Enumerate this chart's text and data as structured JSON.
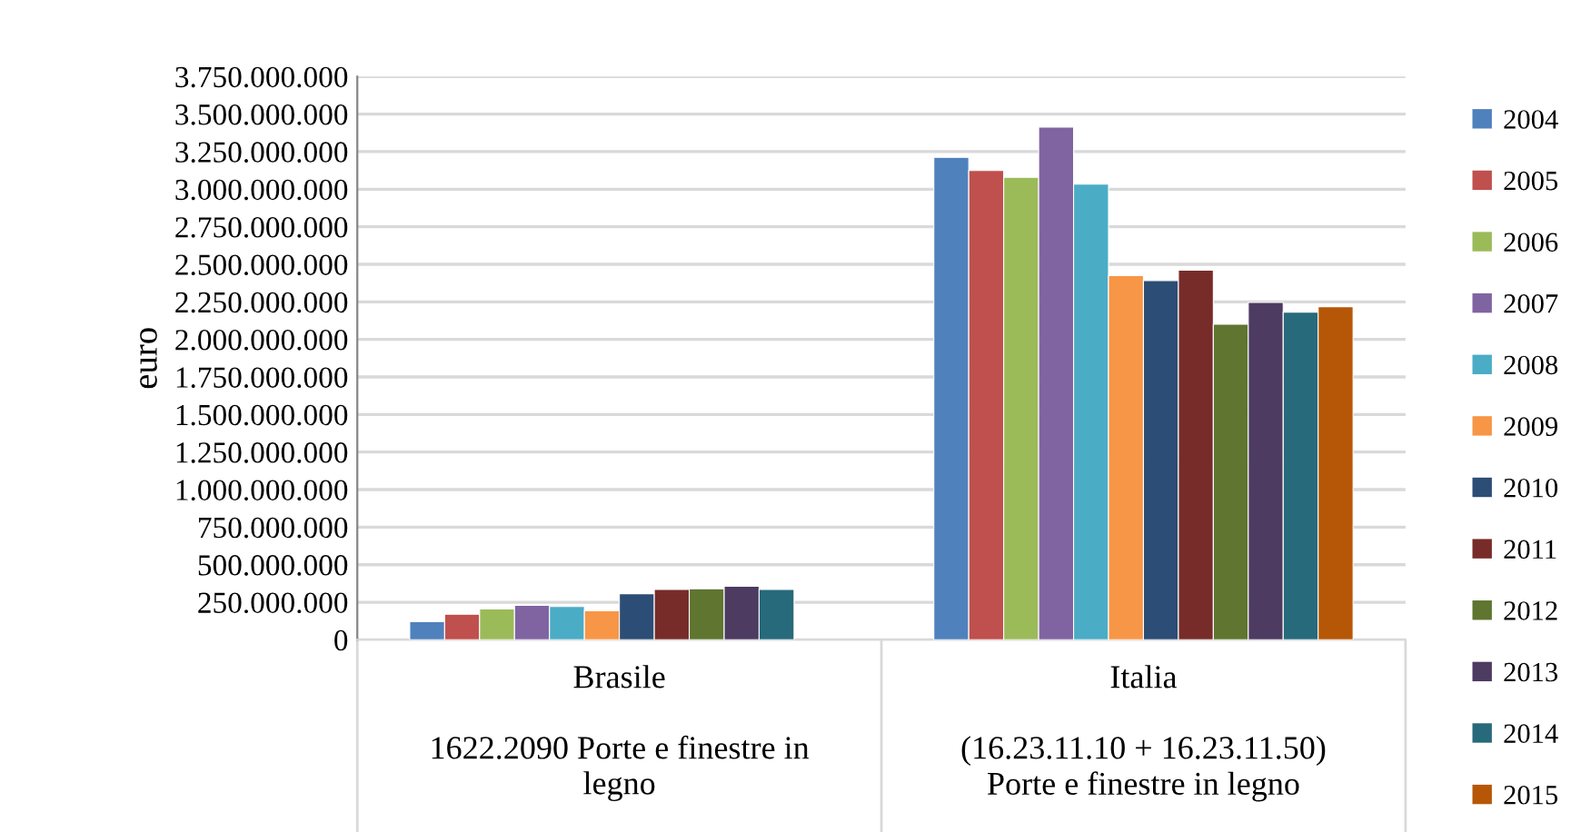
{
  "chart_data": {
    "type": "bar",
    "ylabel": "euro",
    "categories": [
      "Brasile\n\n1622.2090 Porte e finestre in\nlegno",
      "Italia\n\n(16.23.11.10 + 16.23.11.50)\nPorte e finestre in legno"
    ],
    "series": [
      {
        "name": "2004",
        "color": "#4f81bd",
        "values": [
          121000000,
          3212000000
        ]
      },
      {
        "name": "2005",
        "color": "#c0504d",
        "values": [
          170000000,
          3124000000
        ]
      },
      {
        "name": "2006",
        "color": "#9bbb59",
        "values": [
          206000000,
          3079000000
        ]
      },
      {
        "name": "2007",
        "color": "#8064a2",
        "values": [
          230000000,
          3414000000
        ]
      },
      {
        "name": "2008",
        "color": "#4bacc6",
        "values": [
          222000000,
          3034000000
        ]
      },
      {
        "name": "2009",
        "color": "#f79646",
        "values": [
          194000000,
          2424000000
        ]
      },
      {
        "name": "2010",
        "color": "#2c4d75",
        "values": [
          307000000,
          2392000000
        ]
      },
      {
        "name": "2011",
        "color": "#772c2a",
        "values": [
          335000000,
          2461000000
        ]
      },
      {
        "name": "2012",
        "color": "#5f7530",
        "values": [
          340000000,
          2101000000
        ]
      },
      {
        "name": "2013",
        "color": "#4d3b62",
        "values": [
          356000000,
          2247000000
        ]
      },
      {
        "name": "2014",
        "color": "#276a7c",
        "values": [
          335000000,
          2182000000
        ]
      },
      {
        "name": "2015",
        "color": "#b65708",
        "values": [
          null,
          2218000000
        ]
      }
    ],
    "ylim": [
      0,
      3750000000
    ],
    "yticks": [
      {
        "value": 0,
        "label": "0"
      },
      {
        "value": 250000000,
        "label": "250.000.000"
      },
      {
        "value": 500000000,
        "label": "500.000.000"
      },
      {
        "value": 750000000,
        "label": "750.000.000"
      },
      {
        "value": 1000000000,
        "label": "1.000.000.000"
      },
      {
        "value": 1250000000,
        "label": "1.250.000.000"
      },
      {
        "value": 1500000000,
        "label": "1.500.000.000"
      },
      {
        "value": 1750000000,
        "label": "1.750.000.000"
      },
      {
        "value": 2000000000,
        "label": "2.000.000.000"
      },
      {
        "value": 2250000000,
        "label": "2.250.000.000"
      },
      {
        "value": 2500000000,
        "label": "2.500.000.000"
      },
      {
        "value": 2750000000,
        "label": "2.750.000.000"
      },
      {
        "value": 3000000000,
        "label": "3.000.000.000"
      },
      {
        "value": 3250000000,
        "label": "3.250.000.000"
      },
      {
        "value": 3500000000,
        "label": "3.500.000.000"
      },
      {
        "value": 3750000000,
        "label": "3.750.000.000"
      }
    ],
    "grid": "y",
    "legend": "right"
  }
}
